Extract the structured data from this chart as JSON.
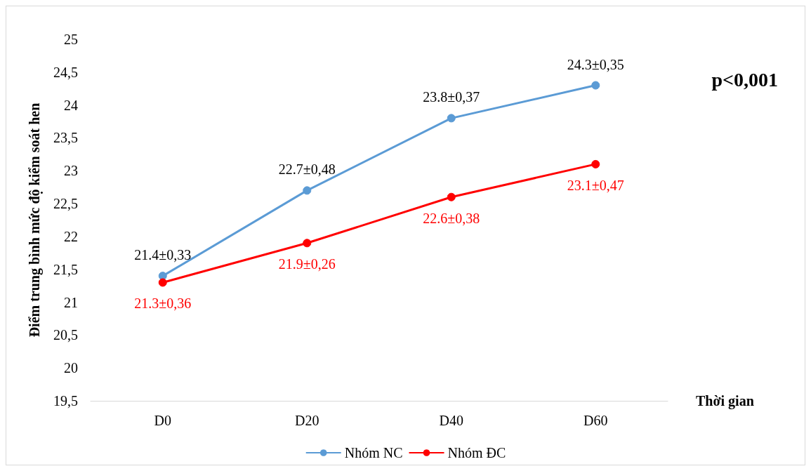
{
  "chart_data": {
    "type": "line",
    "ylabel": "Điểm trung bình mức độ kiểm soát hen",
    "xlabel": "Thời gian",
    "categories": [
      "D0",
      "D20",
      "D40",
      "D60"
    ],
    "series": [
      {
        "name": "Nhóm NC",
        "color": "#5b9bd5",
        "values": [
          21.4,
          22.7,
          23.8,
          24.3
        ],
        "value_labels": [
          "21.4±0,33",
          "22.7±0,48",
          "23.8±0,37",
          "24.3±0,35"
        ]
      },
      {
        "name": "Nhóm ĐC",
        "color": "#ff0000",
        "values": [
          21.3,
          21.9,
          22.6,
          23.1
        ],
        "value_labels": [
          "21.3±0,36",
          "21.9±0,26",
          "22.6±0,38",
          "23.1±0,47"
        ]
      }
    ],
    "ylim": [
      19.5,
      25
    ],
    "yticks": [
      {
        "value": 19.5,
        "label": "19,5"
      },
      20,
      {
        "value": 20.5,
        "label": "20,5"
      },
      21,
      {
        "value": 21.5,
        "label": "21,5"
      },
      22,
      {
        "value": 22.5,
        "label": "22,5"
      },
      23,
      {
        "value": 23.5,
        "label": "23,5"
      },
      24,
      {
        "value": 24.5,
        "label": "24,5"
      },
      25
    ],
    "annotations": [
      "p<0,001"
    ],
    "legend": "bottom",
    "marker": "circle",
    "line_style": "solid",
    "grid": false
  }
}
